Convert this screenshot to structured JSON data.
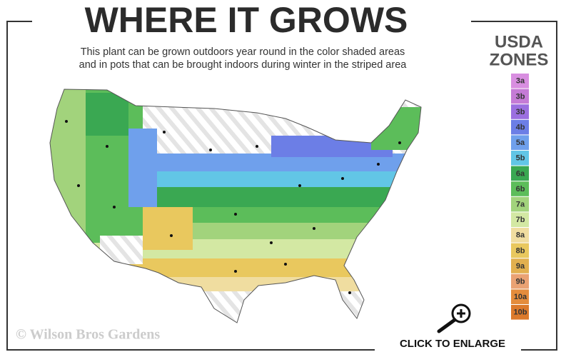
{
  "header": {
    "title": "WHERE IT GROWS",
    "subtitle_lines": [
      "This plant can be grown outdoors year round in the color shaded areas",
      "and in pots that can be brought indoors during winter in the striped area"
    ]
  },
  "legend": {
    "title_lines": [
      "USDA",
      "ZONES"
    ],
    "zones": [
      {
        "label": "3a",
        "color": "#d88ee0"
      },
      {
        "label": "3b",
        "color": "#c57bd6"
      },
      {
        "label": "3b",
        "color": "#9b6fe0"
      },
      {
        "label": "4b",
        "color": "#6c7ee6"
      },
      {
        "label": "5a",
        "color": "#6fa0ec"
      },
      {
        "label": "5b",
        "color": "#62c6e6"
      },
      {
        "label": "6a",
        "color": "#3aa852"
      },
      {
        "label": "6b",
        "color": "#5cbd5a"
      },
      {
        "label": "7a",
        "color": "#a2d37c"
      },
      {
        "label": "7b",
        "color": "#d3e8a3"
      },
      {
        "label": "8a",
        "color": "#f0dda0"
      },
      {
        "label": "8b",
        "color": "#e9c85e"
      },
      {
        "label": "9a",
        "color": "#e2b04f"
      },
      {
        "label": "9b",
        "color": "#eaa273"
      },
      {
        "label": "10a",
        "color": "#e48c3c"
      },
      {
        "label": "10b",
        "color": "#dc7a2c"
      }
    ]
  },
  "watermark": "© Wilson Bros Gardens",
  "button": {
    "label": "CLICK TO ENLARGE"
  }
}
